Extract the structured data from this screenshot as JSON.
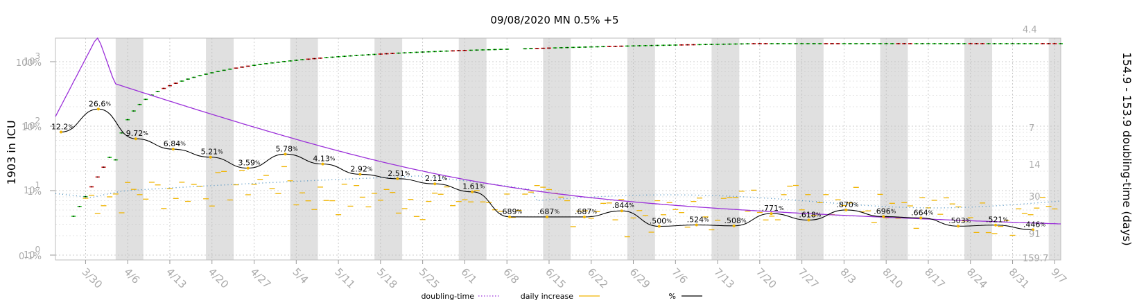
{
  "chart_data": {
    "type": "line",
    "title": "09/08/2020 MN 0.5% +5",
    "ylabel_left": "1903 in ICU",
    "ylabel_right": "154.9 - 153.9 doubling-time (days)",
    "x_dates": [
      "3/30",
      "4/6",
      "4/13",
      "4/20",
      "4/27",
      "5/4",
      "5/11",
      "5/18",
      "5/25",
      "6/1",
      "6/8",
      "6/15",
      "6/22",
      "6/29",
      "7/6",
      "7/13",
      "7/20",
      "7/27",
      "8/3",
      "8/10",
      "8/17",
      "8/24",
      "8/31",
      "9/7"
    ],
    "y_left_ticks": [
      "10^0",
      "10^1",
      "10^2",
      "10^3"
    ],
    "y_left_pct_ticks": [
      "0.1%",
      "1%",
      "10%",
      "100%"
    ],
    "y_right_ticks": [
      "4.4",
      "7",
      "14",
      "30",
      "91",
      "159.7"
    ],
    "shaded_weeks_start": [
      "4/4",
      "4/19",
      "5/3",
      "5/17",
      "5/31",
      "6/14",
      "6/28",
      "7/12",
      "7/26",
      "8/9",
      "8/23",
      "9/6"
    ],
    "pct_annotations": [
      {
        "date": "3/28",
        "value": 12.2,
        "text": "12.2"
      },
      {
        "date": "4/5",
        "value": 26.6,
        "text": "26.6"
      },
      {
        "date": "4/12",
        "value": 9.72,
        "text": "9.72"
      },
      {
        "date": "4/19",
        "value": 6.84,
        "text": "6.84"
      },
      {
        "date": "4/26",
        "value": 5.21,
        "text": "5.21"
      },
      {
        "date": "5/3",
        "value": 3.59,
        "text": "3.59"
      },
      {
        "date": "5/10",
        "value": 5.78,
        "text": "5.78"
      },
      {
        "date": "5/17",
        "value": 4.13,
        "text": "4.13"
      },
      {
        "date": "5/24",
        "value": 2.92,
        "text": "2.92"
      },
      {
        "date": "5/31",
        "value": 2.51,
        "text": "2.51"
      },
      {
        "date": "6/7",
        "value": 2.11,
        "text": "2.11"
      },
      {
        "date": "6/14",
        "value": 1.61,
        "text": "1.61"
      },
      {
        "date": "6/21",
        "value": 0.689,
        "text": ".689"
      },
      {
        "date": "6/28",
        "value": 0.687,
        "text": ".687"
      },
      {
        "date": "7/5",
        "value": 0.687,
        "text": ".687"
      },
      {
        "date": "7/12",
        "value": 0.844,
        "text": ".844"
      },
      {
        "date": "7/19",
        "value": 0.5,
        "text": ".500"
      },
      {
        "date": "7/26",
        "value": 0.524,
        "text": ".524"
      },
      {
        "date": "8/2",
        "value": 0.508,
        "text": ".508"
      },
      {
        "date": "8/9",
        "value": 0.771,
        "text": ".771"
      },
      {
        "date": "8/16",
        "value": 0.618,
        "text": ".618"
      },
      {
        "date": "8/23",
        "value": 0.87,
        "text": ".870"
      },
      {
        "date": "8/30",
        "value": 0.696,
        "text": ".696"
      },
      {
        "date": "9/6",
        "value": 0.664,
        "text": ".664"
      },
      {
        "date": "9/13",
        "value": 0.503,
        "text": ".503"
      },
      {
        "date": "9/20",
        "value": 0.521,
        "text": ".521"
      },
      {
        "date": "9/27",
        "value": 0.446,
        "text": ".446"
      }
    ],
    "series": [
      {
        "name": "doubling-time",
        "color": "#9b30d9",
        "style": "dotted-legend"
      },
      {
        "name": "daily increase",
        "color": "#f0b400",
        "style": "dash"
      },
      {
        "name": "%",
        "color": "#000000",
        "style": "solid"
      }
    ],
    "grid": true,
    "legend_position": "bottom-center"
  }
}
